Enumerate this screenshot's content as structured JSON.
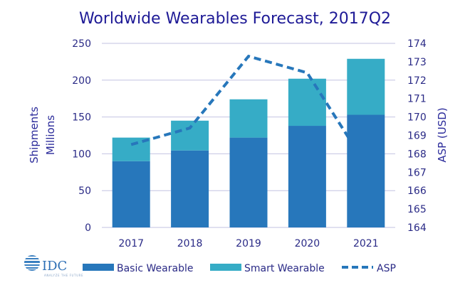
{
  "chart_data": {
    "type": "bar",
    "stacked": true,
    "title": "Worldwide Wearables Forecast, 2017Q2",
    "categories": [
      "2017",
      "2018",
      "2019",
      "2020",
      "2021"
    ],
    "series": [
      {
        "name": "Basic Wearable",
        "kind": "bar",
        "axis": "left",
        "color": "#2777bb",
        "values": [
          90,
          104.5,
          122,
          138,
          153
        ]
      },
      {
        "name": "Smart Wearable",
        "kind": "bar",
        "axis": "left",
        "color": "#36acc6",
        "values": [
          32,
          40.5,
          52,
          64,
          76
        ]
      },
      {
        "name": "ASP",
        "kind": "line",
        "style": "dashed",
        "axis": "right",
        "color": "#2777bb",
        "values": [
          168.5,
          169.4,
          173.3,
          172.4,
          167.4
        ]
      }
    ],
    "ylabel": "Shipments Millions",
    "ylabel_lines": [
      "Shipments",
      "Millions"
    ],
    "ylim": [
      0,
      250
    ],
    "yticks": [
      "0",
      "50",
      "100",
      "150",
      "200",
      "250"
    ],
    "y2label": "ASP (USD)",
    "y2lim": [
      164,
      174
    ],
    "y2ticks": [
      "164",
      "165",
      "166",
      "167",
      "168",
      "169",
      "170",
      "171",
      "172",
      "173",
      "174"
    ],
    "grid": true,
    "legend_position": "bottom"
  },
  "logo": {
    "text": "IDC",
    "tagline": "ANALYZE THE FUTURE"
  }
}
